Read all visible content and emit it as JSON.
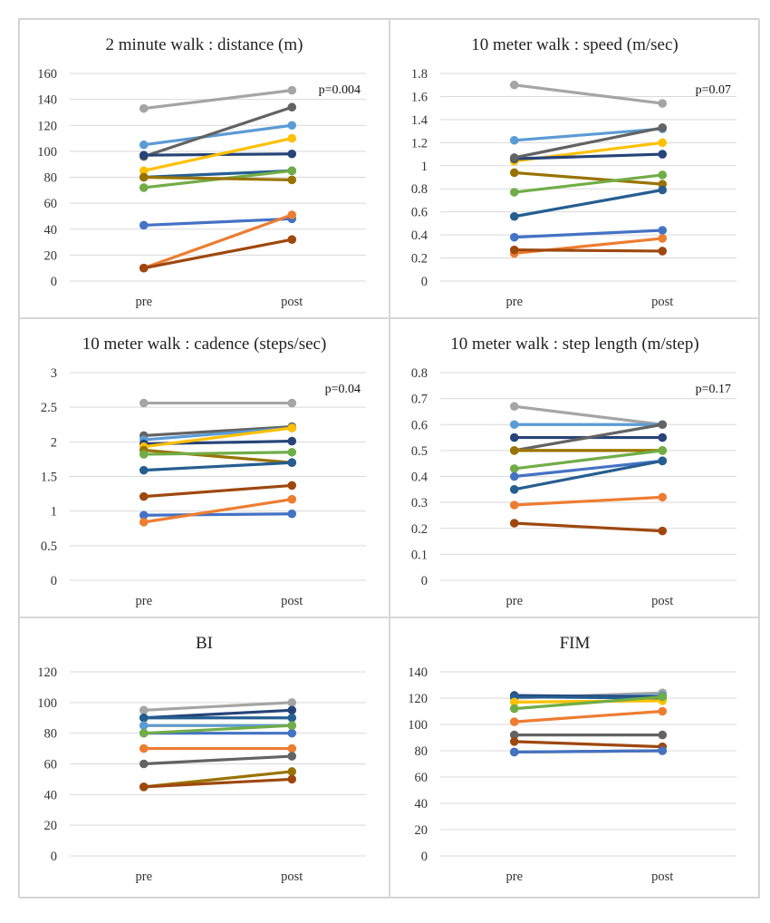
{
  "chart_data": [
    {
      "type": "line",
      "title": "2 minute walk : distance (m)",
      "annotation": "p=0.004",
      "categories": [
        "pre",
        "post"
      ],
      "ylim": [
        0,
        160
      ],
      "yticks": [
        0,
        20,
        40,
        60,
        80,
        100,
        120,
        140,
        160
      ],
      "ytick_labels": [
        "0",
        "20",
        "40",
        "60",
        "80",
        "100",
        "120",
        "140",
        "160"
      ],
      "grid": true,
      "series": [
        {
          "color": "#A5A5A5",
          "values": [
            133,
            147
          ]
        },
        {
          "color": "#5B9BD5",
          "values": [
            105,
            120
          ]
        },
        {
          "color": "#636363",
          "values": [
            96,
            134
          ]
        },
        {
          "color": "#264478",
          "values": [
            97,
            98
          ]
        },
        {
          "color": "#FFC000",
          "values": [
            85,
            110
          ]
        },
        {
          "color": "#255E91",
          "values": [
            80,
            85
          ]
        },
        {
          "color": "#70AD47",
          "values": [
            72,
            85
          ]
        },
        {
          "color": "#997300",
          "values": [
            80,
            78
          ]
        },
        {
          "color": "#4472C4",
          "values": [
            43,
            48
          ]
        },
        {
          "color": "#ED7D31",
          "values": [
            10,
            51
          ]
        },
        {
          "color": "#9E480E",
          "values": [
            10,
            32
          ]
        }
      ]
    },
    {
      "type": "line",
      "title": "10 meter walk : speed (m/sec)",
      "annotation": "p=0.07",
      "categories": [
        "pre",
        "post"
      ],
      "ylim": [
        0,
        1.8
      ],
      "yticks": [
        0,
        0.2,
        0.4,
        0.6,
        0.8,
        1,
        1.2,
        1.4,
        1.6,
        1.8
      ],
      "ytick_labels": [
        "0",
        "0.2",
        "0.4",
        "0.6",
        "0.8",
        "1",
        "1.2",
        "1.4",
        "1.6",
        "1.8"
      ],
      "grid": true,
      "series": [
        {
          "color": "#A5A5A5",
          "values": [
            1.7,
            1.54
          ]
        },
        {
          "color": "#5B9BD5",
          "values": [
            1.22,
            1.32
          ]
        },
        {
          "color": "#FFC000",
          "values": [
            1.04,
            1.2
          ]
        },
        {
          "color": "#264478",
          "values": [
            1.06,
            1.1
          ]
        },
        {
          "color": "#636363",
          "values": [
            1.07,
            1.33
          ]
        },
        {
          "color": "#997300",
          "values": [
            0.94,
            0.84
          ]
        },
        {
          "color": "#70AD47",
          "values": [
            0.77,
            0.92
          ]
        },
        {
          "color": "#255E91",
          "values": [
            0.56,
            0.79
          ]
        },
        {
          "color": "#4472C4",
          "values": [
            0.38,
            0.44
          ]
        },
        {
          "color": "#ED7D31",
          "values": [
            0.24,
            0.37
          ]
        },
        {
          "color": "#9E480E",
          "values": [
            0.27,
            0.26
          ]
        }
      ]
    },
    {
      "type": "line",
      "title": "10 meter walk : cadence (steps/sec)",
      "annotation": "p=0.04",
      "categories": [
        "pre",
        "post"
      ],
      "ylim": [
        0,
        3
      ],
      "yticks": [
        0,
        0.5,
        1,
        1.5,
        2,
        2.5,
        3
      ],
      "ytick_labels": [
        "0",
        "0.5",
        "1",
        "1.5",
        "2",
        "2.5",
        "3"
      ],
      "grid": true,
      "series": [
        {
          "color": "#A5A5A5",
          "values": [
            2.56,
            2.56
          ]
        },
        {
          "color": "#636363",
          "values": [
            2.09,
            2.22
          ]
        },
        {
          "color": "#5B9BD5",
          "values": [
            2.03,
            2.2
          ]
        },
        {
          "color": "#264478",
          "values": [
            1.97,
            2.01
          ]
        },
        {
          "color": "#FFC000",
          "values": [
            1.93,
            2.2
          ]
        },
        {
          "color": "#997300",
          "values": [
            1.88,
            1.7
          ]
        },
        {
          "color": "#70AD47",
          "values": [
            1.82,
            1.85
          ]
        },
        {
          "color": "#255E91",
          "values": [
            1.59,
            1.7
          ]
        },
        {
          "color": "#9E480E",
          "values": [
            1.21,
            1.37
          ]
        },
        {
          "color": "#4472C4",
          "values": [
            0.94,
            0.96
          ]
        },
        {
          "color": "#ED7D31",
          "values": [
            0.84,
            1.17
          ]
        }
      ]
    },
    {
      "type": "line",
      "title": "10 meter walk : step length (m/step)",
      "annotation": "p=0.17",
      "categories": [
        "pre",
        "post"
      ],
      "ylim": [
        0,
        0.8
      ],
      "yticks": [
        0,
        0.1,
        0.2,
        0.3,
        0.4,
        0.5,
        0.6,
        0.7,
        0.8
      ],
      "ytick_labels": [
        "0",
        "0.1",
        "0.2",
        "0.3",
        "0.4",
        "0.5",
        "0.6",
        "0.7",
        "0.8"
      ],
      "grid": true,
      "series": [
        {
          "color": "#A5A5A5",
          "values": [
            0.67,
            0.6
          ]
        },
        {
          "color": "#5B9BD5",
          "values": [
            0.6,
            0.6
          ]
        },
        {
          "color": "#264478",
          "values": [
            0.55,
            0.55
          ]
        },
        {
          "color": "#636363",
          "values": [
            0.5,
            0.6
          ]
        },
        {
          "color": "#FFC000",
          "values": [
            0.5,
            0.5
          ]
        },
        {
          "color": "#997300",
          "values": [
            0.5,
            0.5
          ]
        },
        {
          "color": "#70AD47",
          "values": [
            0.43,
            0.5
          ]
        },
        {
          "color": "#4472C4",
          "values": [
            0.4,
            0.46
          ]
        },
        {
          "color": "#255E91",
          "values": [
            0.35,
            0.46
          ]
        },
        {
          "color": "#ED7D31",
          "values": [
            0.29,
            0.32
          ]
        },
        {
          "color": "#9E480E",
          "values": [
            0.22,
            0.19
          ]
        }
      ]
    },
    {
      "type": "line",
      "title": "BI",
      "annotation": "",
      "categories": [
        "pre",
        "post"
      ],
      "ylim": [
        0,
        120
      ],
      "yticks": [
        0,
        20,
        40,
        60,
        80,
        100,
        120
      ],
      "ytick_labels": [
        "0",
        "20",
        "40",
        "60",
        "80",
        "100",
        "120"
      ],
      "grid": true,
      "series": [
        {
          "color": "#A5A5A5",
          "values": [
            95,
            100
          ]
        },
        {
          "color": "#264478",
          "values": [
            90,
            95
          ]
        },
        {
          "color": "#255E91",
          "values": [
            90,
            90
          ]
        },
        {
          "color": "#FFC000",
          "values": [
            85,
            85
          ]
        },
        {
          "color": "#5B9BD5",
          "values": [
            85,
            85
          ]
        },
        {
          "color": "#4472C4",
          "values": [
            80,
            80
          ]
        },
        {
          "color": "#70AD47",
          "values": [
            80,
            85
          ]
        },
        {
          "color": "#ED7D31",
          "values": [
            70,
            70
          ]
        },
        {
          "color": "#636363",
          "values": [
            60,
            65
          ]
        },
        {
          "color": "#997300",
          "values": [
            45,
            55
          ]
        },
        {
          "color": "#9E480E",
          "values": [
            45,
            50
          ]
        }
      ]
    },
    {
      "type": "line",
      "title": "FIM",
      "annotation": "",
      "categories": [
        "pre",
        "post"
      ],
      "ylim": [
        0,
        140
      ],
      "yticks": [
        0,
        20,
        40,
        60,
        80,
        100,
        120,
        140
      ],
      "ytick_labels": [
        "0",
        "20",
        "40",
        "60",
        "80",
        "100",
        "120",
        "140"
      ],
      "grid": true,
      "series": [
        {
          "color": "#A5A5A5",
          "values": [
            120,
            124
          ]
        },
        {
          "color": "#5B9BD5",
          "values": [
            121,
            122
          ]
        },
        {
          "color": "#264478",
          "values": [
            122,
            121
          ]
        },
        {
          "color": "#255E91",
          "values": [
            121,
            120
          ]
        },
        {
          "color": "#FFC000",
          "values": [
            117,
            118
          ]
        },
        {
          "color": "#70AD47",
          "values": [
            112,
            121
          ]
        },
        {
          "color": "#ED7D31",
          "values": [
            102,
            110
          ]
        },
        {
          "color": "#636363",
          "values": [
            92,
            92
          ]
        },
        {
          "color": "#9E480E",
          "values": [
            87,
            83
          ]
        },
        {
          "color": "#997300",
          "values": [
            79,
            80
          ]
        },
        {
          "color": "#4472C4",
          "values": [
            79,
            80
          ]
        }
      ]
    }
  ]
}
